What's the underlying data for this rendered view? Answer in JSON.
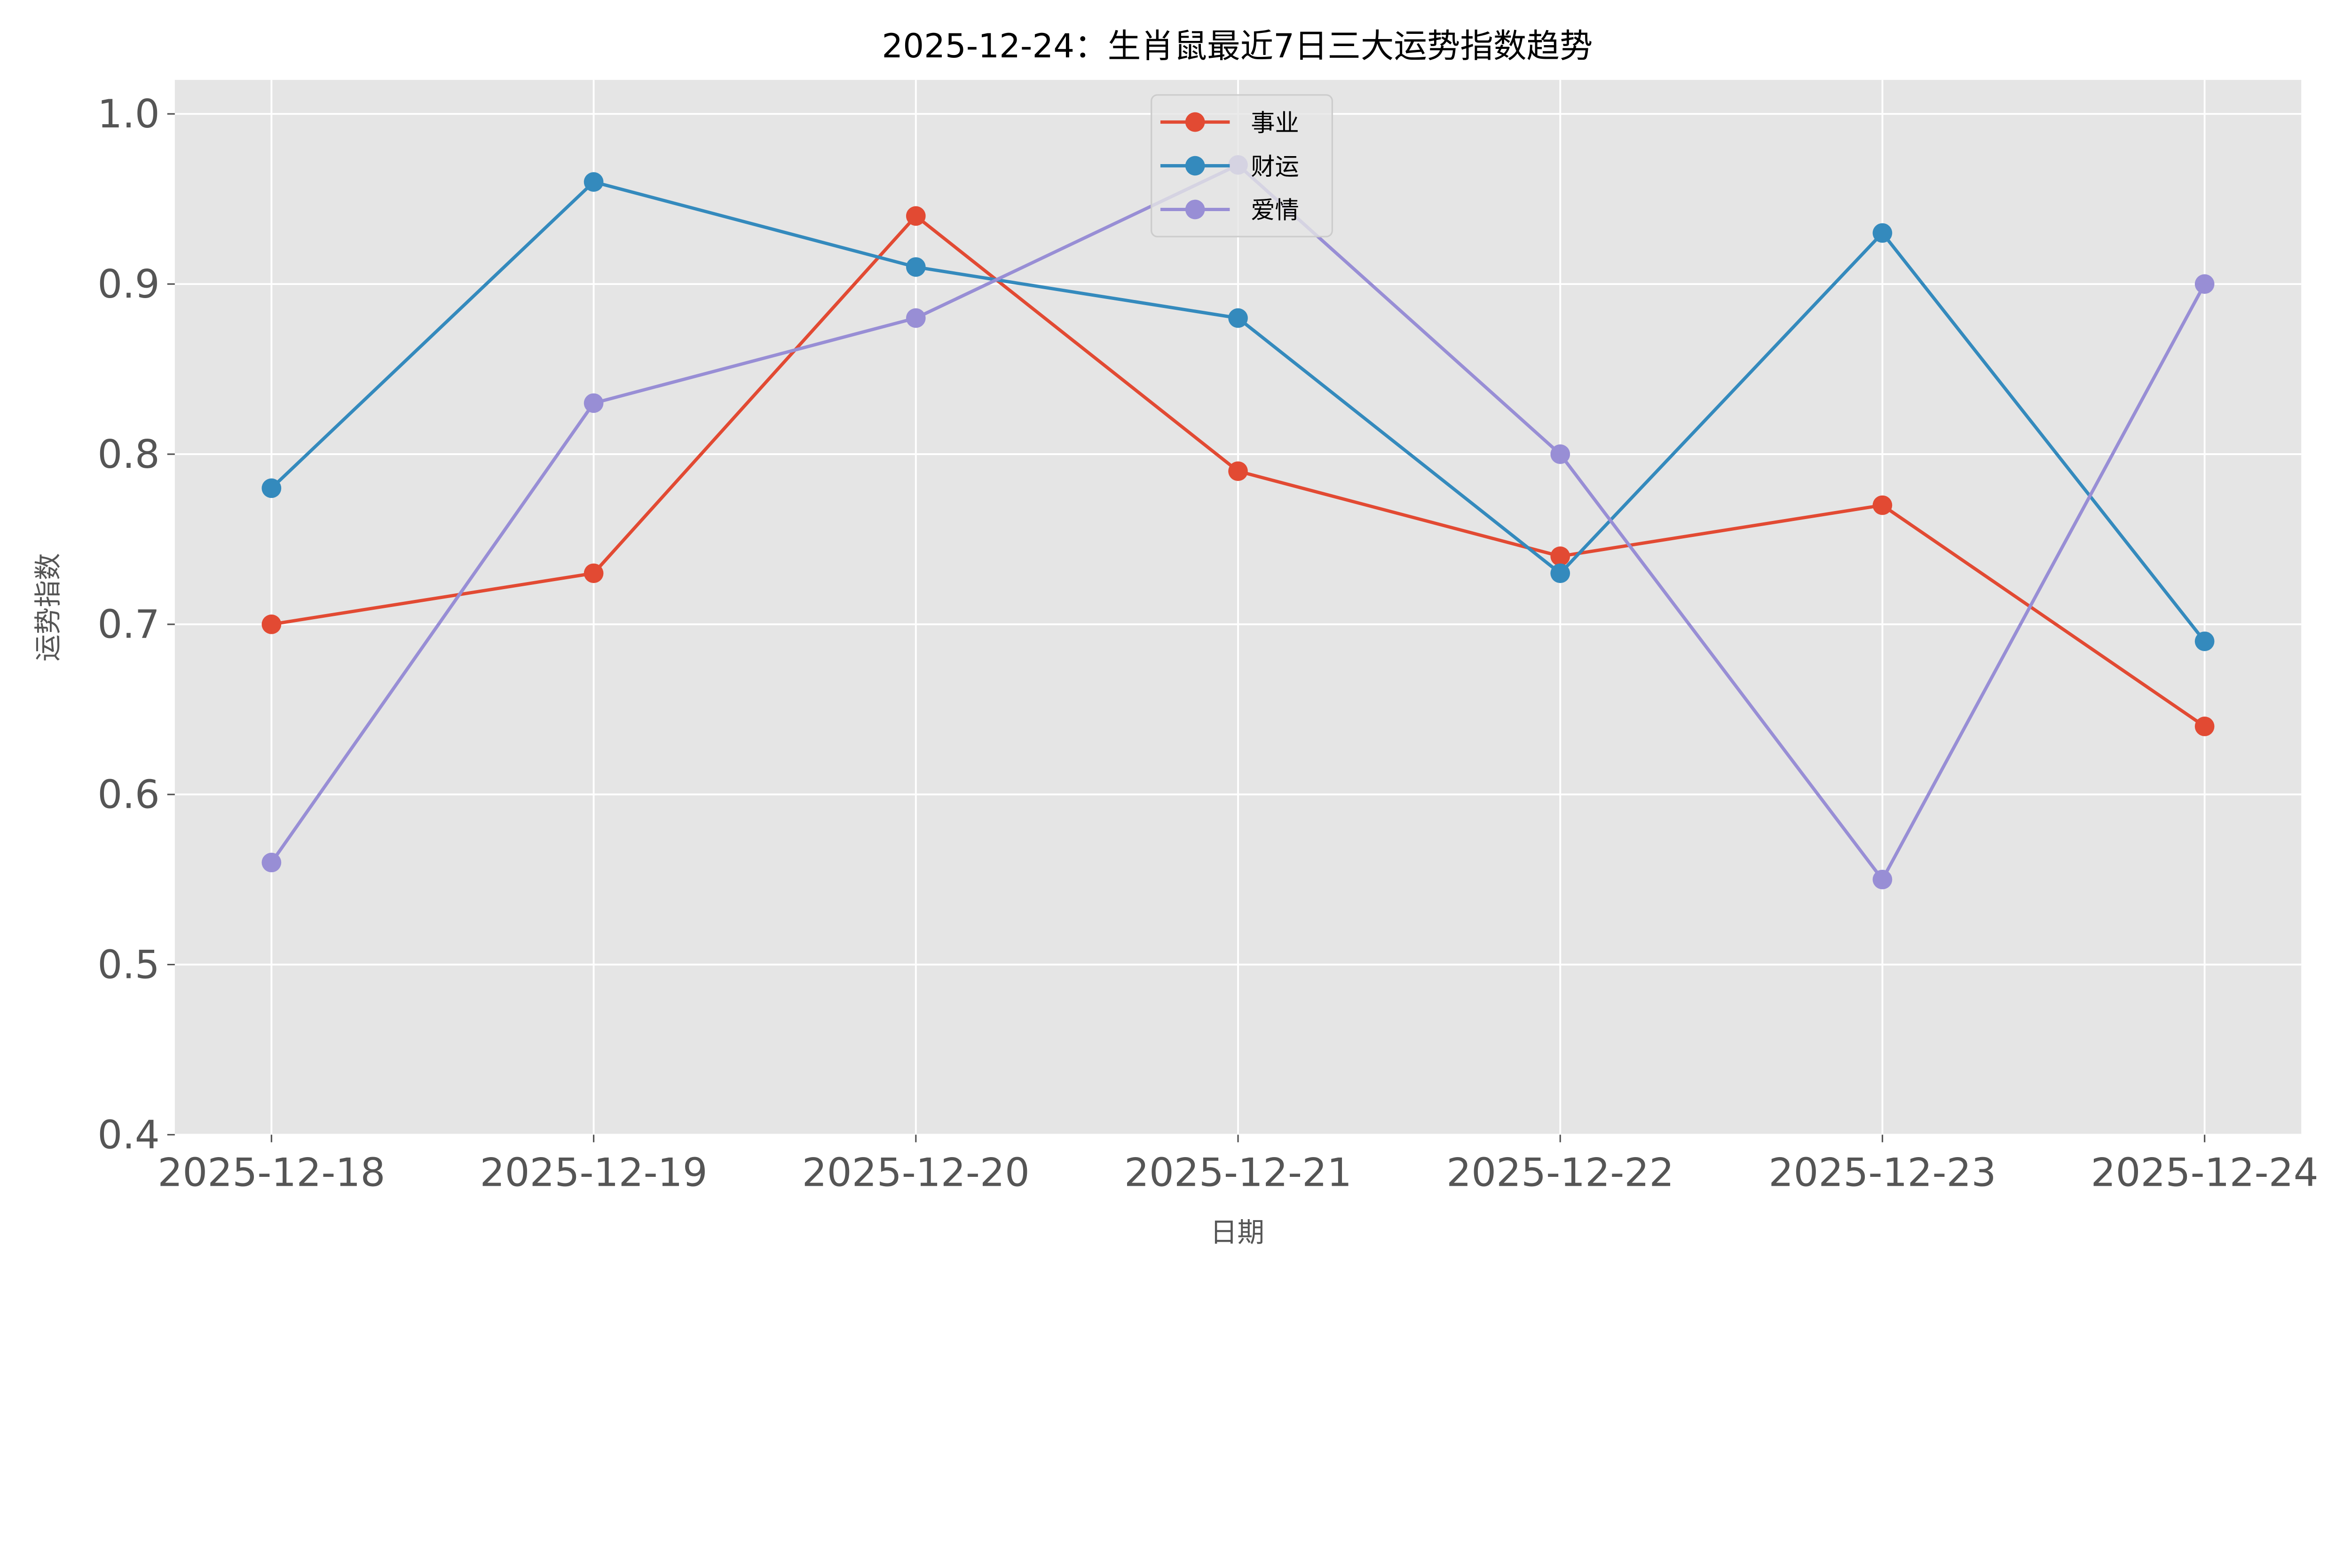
{
  "chart_data": {
    "type": "line",
    "title": "2025-12-24：生肖鼠最近7日三大运势指数趋势",
    "xlabel": "日期",
    "ylabel": "运势指数",
    "categories": [
      "2025-12-18",
      "2025-12-19",
      "2025-12-20",
      "2025-12-21",
      "2025-12-22",
      "2025-12-23",
      "2025-12-24"
    ],
    "ylim": [
      0.4,
      1.02
    ],
    "yticks": [
      "0.4",
      "0.5",
      "0.6",
      "0.7",
      "0.8",
      "0.9",
      "1.0"
    ],
    "grid": true,
    "background": "#E5E5E5",
    "legend_position": "upper-center",
    "series": [
      {
        "name": "事业",
        "color": "#E24A33",
        "values": [
          0.7,
          0.73,
          0.94,
          0.79,
          0.74,
          0.77,
          0.64
        ]
      },
      {
        "name": "财运",
        "color": "#348ABD",
        "values": [
          0.78,
          0.96,
          0.91,
          0.88,
          0.73,
          0.93,
          0.69
        ]
      },
      {
        "name": "爱情",
        "color": "#988ED5",
        "values": [
          0.56,
          0.83,
          0.88,
          0.97,
          0.8,
          0.55,
          0.9
        ]
      }
    ]
  }
}
